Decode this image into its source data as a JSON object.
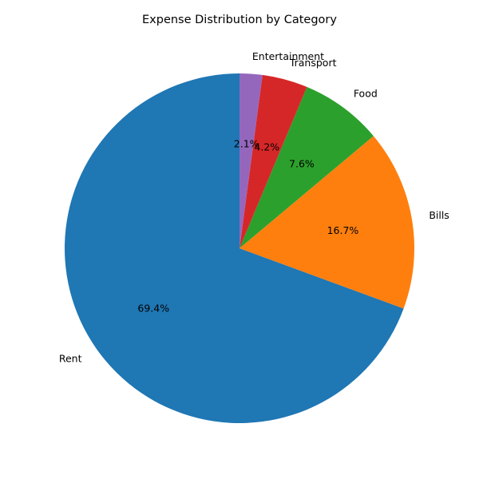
{
  "chart_data": {
    "type": "pie",
    "title": "Expense Distribution by Category",
    "categories": [
      "Rent",
      "Bills",
      "Food",
      "Transport",
      "Entertainment"
    ],
    "values": [
      69.4,
      16.7,
      7.6,
      4.2,
      2.1
    ],
    "value_labels": [
      "69.4%",
      "16.7%",
      "7.6%",
      "4.2%",
      "2.1%"
    ],
    "colors": [
      "#1f77b4",
      "#ff7f0e",
      "#2ca02c",
      "#d62728",
      "#9467bd"
    ],
    "start_angle_deg": 90,
    "direction": "counterclockwise",
    "legend": "none"
  }
}
